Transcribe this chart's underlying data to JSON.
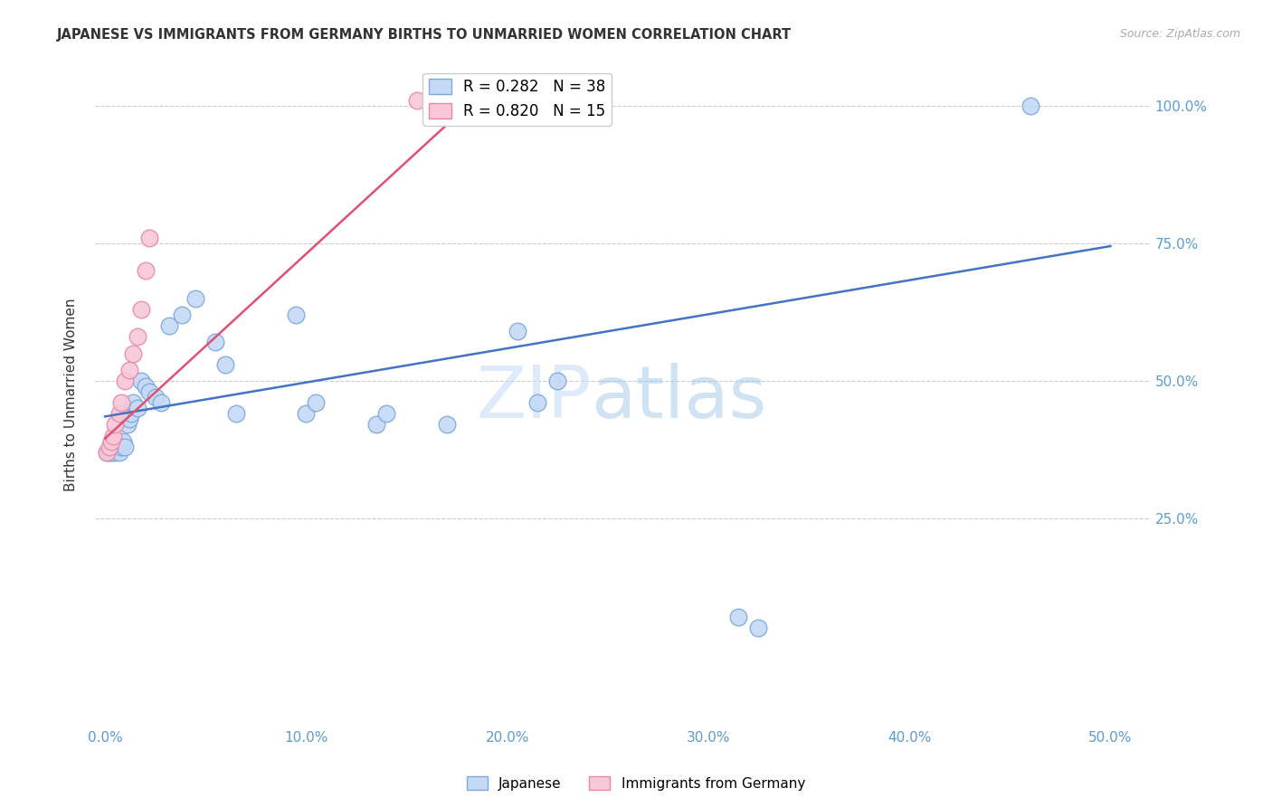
{
  "title": "JAPANESE VS IMMIGRANTS FROM GERMANY BIRTHS TO UNMARRIED WOMEN CORRELATION CHART",
  "source": "Source: ZipAtlas.com",
  "ylabel": "Births to Unmarried Women",
  "xlim": [
    -0.005,
    0.52
  ],
  "ylim": [
    -0.13,
    1.08
  ],
  "xticks": [
    0.0,
    0.1,
    0.2,
    0.3,
    0.4,
    0.5
  ],
  "xticklabels": [
    "0.0%",
    "10.0%",
    "20.0%",
    "30.0%",
    "40.0%",
    "50.0%"
  ],
  "yticks": [
    0.25,
    0.5,
    0.75,
    1.0
  ],
  "yticklabels": [
    "25.0%",
    "50.0%",
    "75.0%",
    "100.0%"
  ],
  "grid_color": "#cccccc",
  "background_color": "#ffffff",
  "japanese_color": "#c5d9f5",
  "german_color": "#f8c8d8",
  "japanese_edge": "#7aaadd",
  "german_edge": "#e888a8",
  "trend_blue": "#4472c4",
  "trend_pink": "#e05070",
  "R_japanese": 0.282,
  "N_japanese": 38,
  "R_german": 0.82,
  "N_german": 15,
  "legend_labels": [
    "Japanese",
    "Immigrants from Germany"
  ],
  "watermark_part1": "ZIP",
  "watermark_part2": "atlas",
  "japanese_x": [
    0.001,
    0.002,
    0.003,
    0.004,
    0.005,
    0.006,
    0.007,
    0.008,
    0.009,
    0.01,
    0.011,
    0.012,
    0.013,
    0.014,
    0.016,
    0.018,
    0.02,
    0.022,
    0.025,
    0.028,
    0.032,
    0.038,
    0.045,
    0.055,
    0.06,
    0.065,
    0.095,
    0.1,
    0.105,
    0.135,
    0.14,
    0.17,
    0.205,
    0.215,
    0.225,
    0.315,
    0.325,
    0.46
  ],
  "japanese_y": [
    0.37,
    0.37,
    0.37,
    0.38,
    0.37,
    0.38,
    0.37,
    0.38,
    0.39,
    0.38,
    0.42,
    0.43,
    0.44,
    0.46,
    0.45,
    0.5,
    0.49,
    0.48,
    0.47,
    0.46,
    0.6,
    0.62,
    0.65,
    0.57,
    0.53,
    0.44,
    0.62,
    0.44,
    0.46,
    0.42,
    0.44,
    0.42,
    0.59,
    0.46,
    0.5,
    0.07,
    0.05,
    1.0
  ],
  "german_x": [
    0.001,
    0.002,
    0.003,
    0.004,
    0.005,
    0.007,
    0.008,
    0.01,
    0.012,
    0.014,
    0.016,
    0.018,
    0.02,
    0.022,
    0.155
  ],
  "german_y": [
    0.37,
    0.38,
    0.39,
    0.4,
    0.42,
    0.44,
    0.46,
    0.5,
    0.52,
    0.55,
    0.58,
    0.63,
    0.7,
    0.76,
    1.01
  ],
  "blue_line_x": [
    0.0,
    0.5
  ],
  "blue_line_y": [
    0.435,
    0.745
  ],
  "pink_line_x": [
    0.0,
    0.195
  ],
  "pink_line_y": [
    0.395,
    1.05
  ]
}
